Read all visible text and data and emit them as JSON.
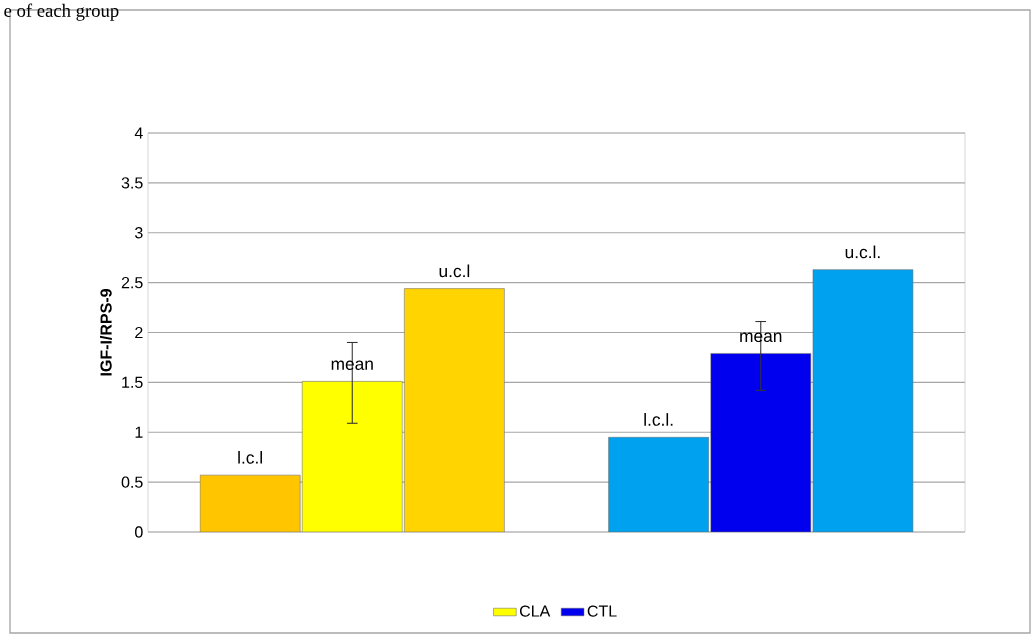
{
  "chart_data": {
    "type": "bar",
    "ylabel": "IGF-I/RPS-9",
    "annotations": [
      "e of each group"
    ],
    "categories": [
      null,
      null,
      null,
      null,
      null,
      null,
      null
    ],
    "series": [
      {
        "name": "CLA",
        "color": "#ffff00",
        "colors": [
          "#ffc600",
          "#ffff00",
          "#ffd400",
          null,
          null,
          null,
          null
        ],
        "values": [
          0.57,
          1.51,
          2.44,
          null,
          null,
          null,
          null
        ],
        "errors": [
          null,
          [
            1.09,
            1.9
          ],
          null,
          null,
          null,
          null,
          null
        ],
        "value_labels": [
          "l.c.l",
          "mean",
          "u.c.l",
          null,
          null,
          null,
          null
        ]
      },
      {
        "name": "CTL",
        "color": "#0000ee",
        "colors": [
          null,
          null,
          null,
          null,
          "#00a2f0",
          "#0000ee",
          "#00a2f0"
        ],
        "values": [
          null,
          null,
          null,
          null,
          0.95,
          1.79,
          2.63
        ],
        "errors": [
          null,
          null,
          null,
          null,
          null,
          [
            1.42,
            2.11
          ],
          null
        ],
        "value_labels": [
          null,
          null,
          null,
          null,
          "l.c.l.",
          "mean",
          "u.c.l."
        ]
      }
    ],
    "ylim": [
      0,
      4
    ],
    "yticks": [
      0,
      0.5,
      1,
      1.5,
      2,
      2.5,
      3,
      3.5,
      4
    ],
    "grid": "y",
    "legend": "bottom"
  }
}
